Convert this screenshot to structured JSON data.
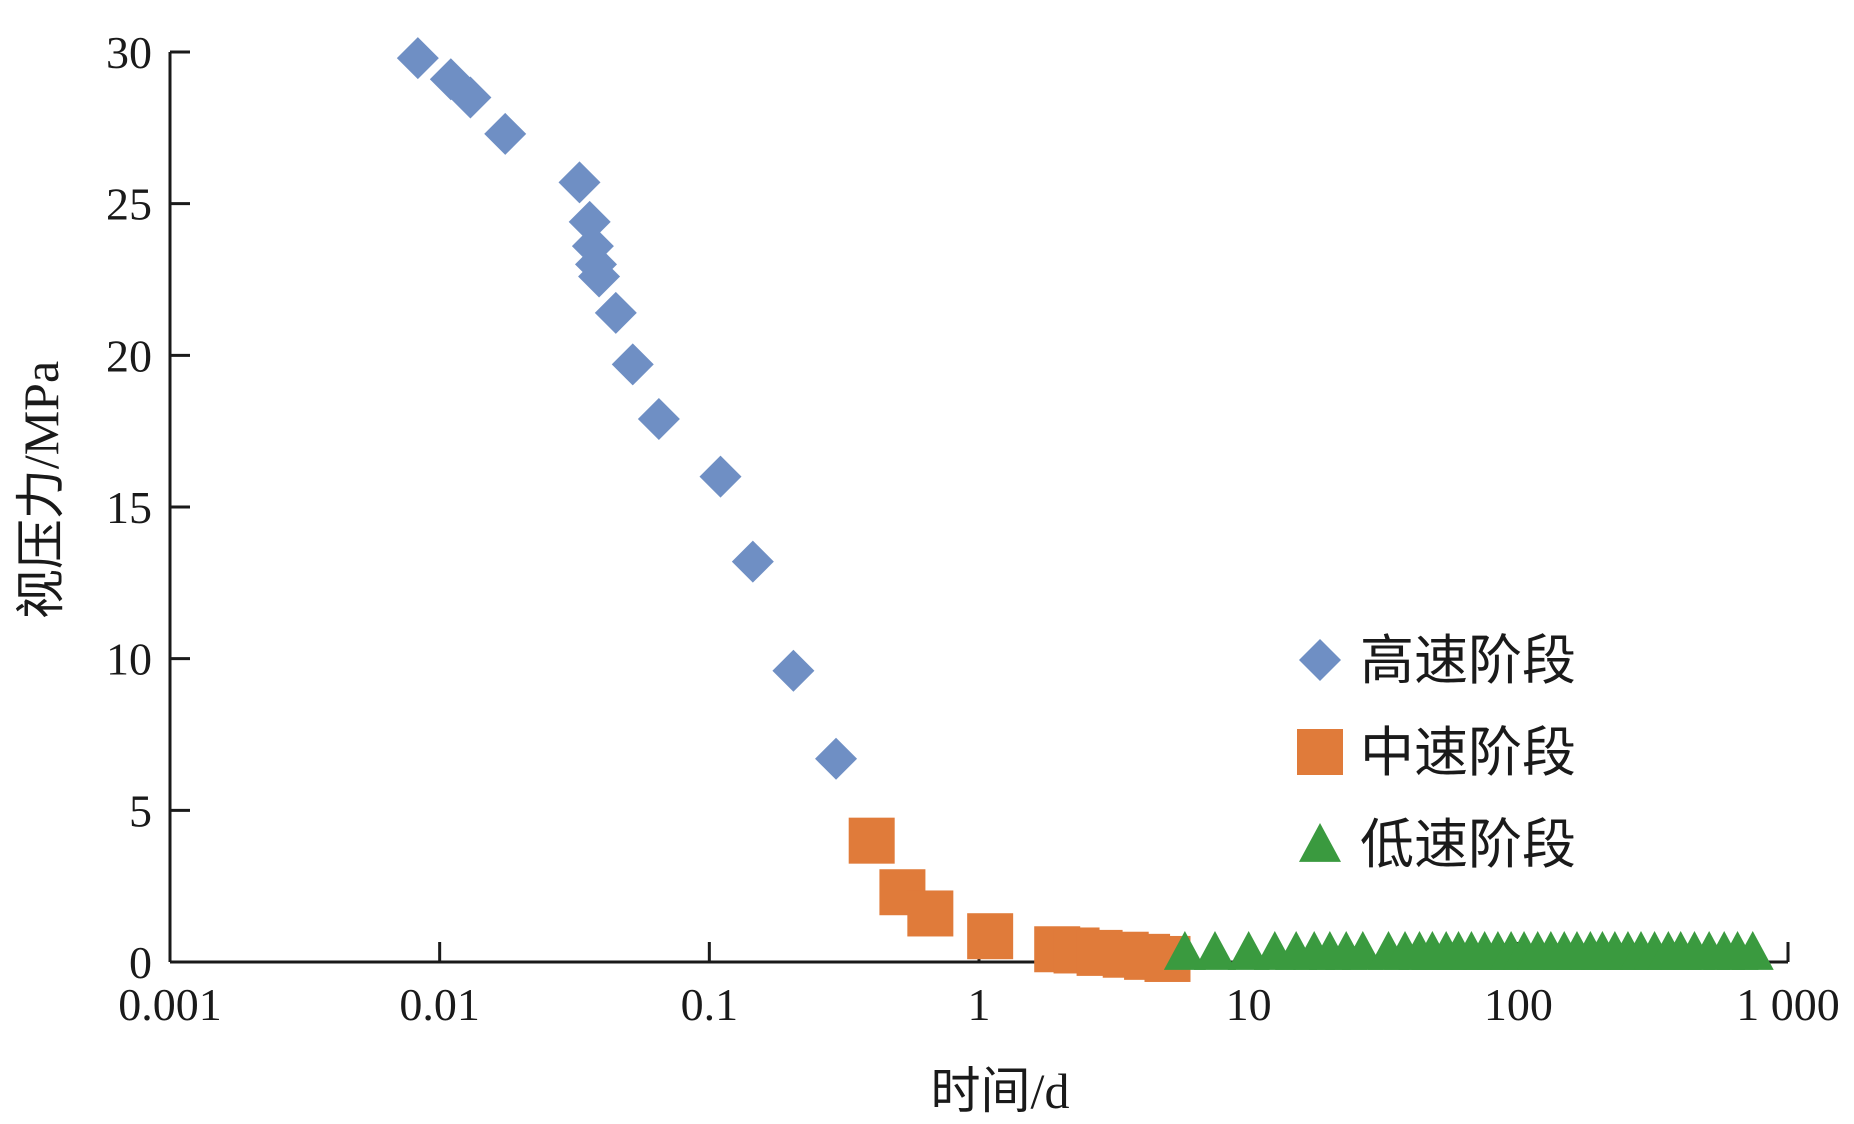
{
  "chart_data": {
    "type": "scatter",
    "xscale": "log",
    "xlim": [
      0.001,
      1000
    ],
    "ylim": [
      0,
      30
    ],
    "xlabel": "时间/d",
    "ylabel": "视压力/MPa",
    "x_ticks": [
      {
        "value": 0.001,
        "label": "0.001"
      },
      {
        "value": 0.01,
        "label": "0.01"
      },
      {
        "value": 0.1,
        "label": "0.1"
      },
      {
        "value": 1,
        "label": "1"
      },
      {
        "value": 10,
        "label": "10"
      },
      {
        "value": 100,
        "label": "100"
      },
      {
        "value": 1000,
        "label": "1 000"
      }
    ],
    "y_ticks": [
      {
        "value": 0,
        "label": "0"
      },
      {
        "value": 5,
        "label": "5"
      },
      {
        "value": 10,
        "label": "10"
      },
      {
        "value": 15,
        "label": "15"
      },
      {
        "value": 20,
        "label": "20"
      },
      {
        "value": 25,
        "label": "25"
      },
      {
        "value": 30,
        "label": "30"
      }
    ],
    "legend_position": "right",
    "series": [
      {
        "name": "高速阶段",
        "marker": "diamond",
        "color": "#6f8fc4",
        "points": [
          [
            0.0083,
            29.8
          ],
          [
            0.011,
            29.1
          ],
          [
            0.013,
            28.5
          ],
          [
            0.0175,
            27.3
          ],
          [
            0.033,
            25.7
          ],
          [
            0.036,
            24.4
          ],
          [
            0.037,
            23.6
          ],
          [
            0.038,
            23.0
          ],
          [
            0.039,
            22.6
          ],
          [
            0.045,
            21.4
          ],
          [
            0.052,
            19.7
          ],
          [
            0.065,
            17.9
          ],
          [
            0.11,
            16.0
          ],
          [
            0.145,
            13.2
          ],
          [
            0.205,
            9.6
          ],
          [
            0.295,
            6.7
          ]
        ]
      },
      {
        "name": "中速阶段",
        "marker": "square",
        "color": "#e07b3a",
        "points": [
          [
            0.4,
            4.0
          ],
          [
            0.52,
            2.3
          ],
          [
            0.66,
            1.6
          ],
          [
            1.1,
            0.85
          ],
          [
            1.95,
            0.42
          ],
          [
            2.3,
            0.38
          ],
          [
            2.8,
            0.3
          ],
          [
            3.5,
            0.24
          ],
          [
            4.2,
            0.17
          ],
          [
            5.0,
            0.1
          ]
        ]
      },
      {
        "name": "低速阶段",
        "marker": "triangle",
        "color": "#3a9a3f",
        "points": [
          [
            5.8,
            0.08
          ],
          [
            7.5,
            0.08
          ],
          [
            10.0,
            0.07
          ],
          [
            12.5,
            0.07
          ],
          [
            15.0,
            0.07
          ],
          [
            17.5,
            0.07
          ],
          [
            20.0,
            0.07
          ],
          [
            23.0,
            0.07
          ],
          [
            26.5,
            0.07
          ],
          [
            33.0,
            0.06
          ],
          [
            38.0,
            0.06
          ],
          [
            43.0,
            0.06
          ],
          [
            48.0,
            0.06
          ],
          [
            54.0,
            0.06
          ],
          [
            60.0,
            0.06
          ],
          [
            67.0,
            0.06
          ],
          [
            75.0,
            0.06
          ],
          [
            84.0,
            0.06
          ],
          [
            94.0,
            0.06
          ],
          [
            105.0,
            0.06
          ],
          [
            118.0,
            0.06
          ],
          [
            132.0,
            0.06
          ],
          [
            148.0,
            0.06
          ],
          [
            165.0,
            0.05
          ],
          [
            185.0,
            0.05
          ],
          [
            205.0,
            0.05
          ],
          [
            228.0,
            0.05
          ],
          [
            255.0,
            0.05
          ],
          [
            285.0,
            0.05
          ],
          [
            320.0,
            0.05
          ],
          [
            360.0,
            0.05
          ],
          [
            400.0,
            0.05
          ],
          [
            450.0,
            0.05
          ],
          [
            510.0,
            0.05
          ],
          [
            580.0,
            0.05
          ],
          [
            650.0,
            0.05
          ],
          [
            740.0,
            0.05
          ]
        ]
      }
    ]
  }
}
